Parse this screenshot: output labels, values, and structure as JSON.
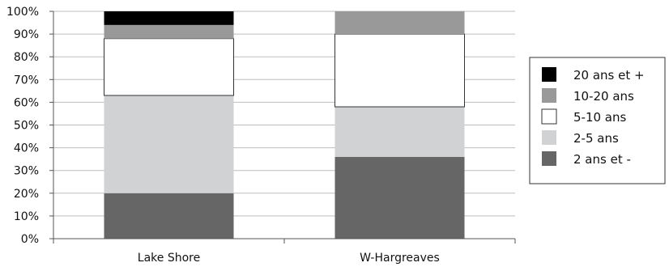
{
  "chart_data": {
    "type": "bar",
    "stacked": true,
    "normalized": true,
    "categories": [
      "Lake Shore",
      "W-Hargreaves"
    ],
    "series": [
      {
        "name": "2 ans et -",
        "values": [
          20,
          36
        ],
        "color": "#666666"
      },
      {
        "name": "2-5 ans",
        "values": [
          43,
          22
        ],
        "color": "#d1d2d4"
      },
      {
        "name": "5-10 ans",
        "values": [
          25,
          32
        ],
        "color": "#ffffff"
      },
      {
        "name": "10-20 ans",
        "values": [
          6,
          10
        ],
        "color": "#999999"
      },
      {
        "name": "20 ans et +",
        "values": [
          6,
          0
        ],
        "color": "#000000"
      }
    ],
    "yticks": [
      "0%",
      "10%",
      "20%",
      "30%",
      "40%",
      "50%",
      "60%",
      "70%",
      "80%",
      "90%",
      "100%"
    ],
    "ylim": [
      0,
      100
    ],
    "grid": true,
    "legend": {
      "position": "right",
      "order": [
        "20 ans et +",
        "10-20 ans",
        "5-10 ans",
        "2-5 ans",
        "2 ans et -"
      ]
    }
  }
}
